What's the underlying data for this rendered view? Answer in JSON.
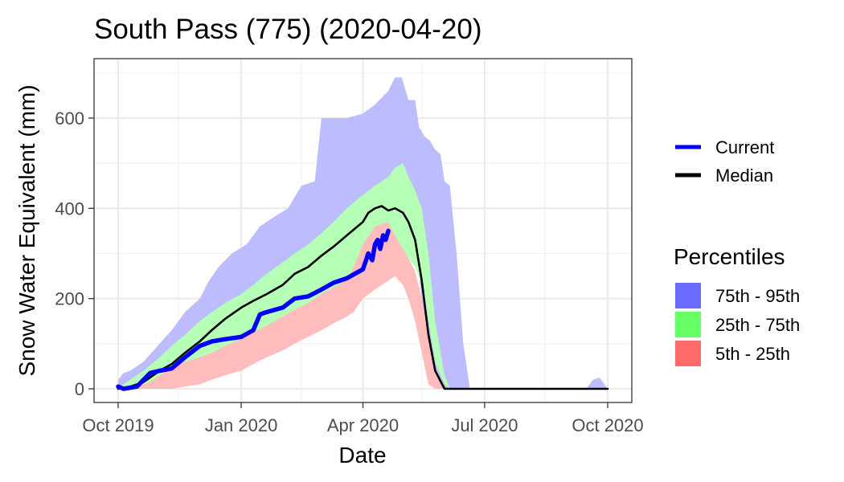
{
  "chart_data": {
    "type": "area",
    "title": "South Pass (775) (2020-04-20)",
    "xlabel": "Date",
    "ylabel": "Snow Water Equivalent (mm)",
    "xlim": [
      "2019-10-01",
      "2020-10-01"
    ],
    "ylim": [
      -30,
      720
    ],
    "grid": true,
    "x_ticks": [
      {
        "date": "2019-10-01",
        "label": "Oct 2019"
      },
      {
        "date": "2020-01-01",
        "label": "Jan 2020"
      },
      {
        "date": "2020-04-01",
        "label": "Apr 2020"
      },
      {
        "date": "2020-07-01",
        "label": "Jul 2020"
      },
      {
        "date": "2020-10-01",
        "label": "Oct 2020"
      }
    ],
    "x_minor_ticks": [
      "2019-11-15",
      "2020-02-15",
      "2020-05-15",
      "2020-08-15"
    ],
    "y_ticks": [
      0,
      200,
      400,
      600
    ],
    "y_minor_ticks": [
      100,
      300,
      500,
      700
    ],
    "legend": {
      "placement": "right",
      "lines_title": "",
      "lines": [
        {
          "name": "Current",
          "color": "#0000ff"
        },
        {
          "name": "Median",
          "color": "#000000"
        }
      ],
      "fill_title": "Percentiles",
      "fills": [
        {
          "name": "75th - 95th",
          "color": "#6b6bff"
        },
        {
          "name": "25th - 75th",
          "color": "#66ff66"
        },
        {
          "name": "5th - 25th",
          "color": "#ff6b6b"
        }
      ]
    },
    "series": [
      {
        "name": "75th - 95th",
        "kind": "band",
        "color": "#bcbcff",
        "x": [
          "2019-10-01",
          "2019-10-05",
          "2019-10-10",
          "2019-10-20",
          "2019-11-01",
          "2019-11-10",
          "2019-11-20",
          "2019-12-01",
          "2019-12-08",
          "2019-12-15",
          "2019-12-25",
          "2020-01-05",
          "2020-01-15",
          "2020-01-25",
          "2020-02-05",
          "2020-02-15",
          "2020-02-25",
          "2020-03-01",
          "2020-03-10",
          "2020-03-20",
          "2020-04-01",
          "2020-04-10",
          "2020-04-20",
          "2020-04-25",
          "2020-04-30",
          "2020-05-05",
          "2020-05-10",
          "2020-05-13",
          "2020-05-17",
          "2020-05-21",
          "2020-05-25",
          "2020-05-29",
          "2020-06-01",
          "2020-06-05",
          "2020-06-10",
          "2020-06-15",
          "2020-06-20",
          "2020-07-01",
          "2020-09-15",
          "2020-09-20",
          "2020-09-25",
          "2020-10-01"
        ],
        "upper": [
          20,
          35,
          40,
          60,
          100,
          130,
          170,
          200,
          240,
          270,
          300,
          320,
          360,
          380,
          400,
          450,
          460,
          600,
          600,
          600,
          610,
          630,
          660,
          690,
          690,
          640,
          640,
          580,
          560,
          550,
          530,
          520,
          460,
          450,
          300,
          100,
          0,
          0,
          0,
          20,
          25,
          0
        ],
        "lower": [
          0,
          5,
          10,
          20,
          40,
          55,
          70,
          90,
          95,
          100,
          110,
          125,
          145,
          165,
          190,
          210,
          230,
          250,
          270,
          300,
          340,
          370,
          390,
          400,
          395,
          360,
          320,
          250,
          150,
          60,
          20,
          0,
          0,
          0,
          0,
          0,
          0,
          0,
          0,
          0,
          0,
          0
        ]
      },
      {
        "name": "25th - 75th",
        "kind": "band",
        "color": "#b6ffb6",
        "x": [
          "2019-10-01",
          "2019-10-05",
          "2019-10-10",
          "2019-10-20",
          "2019-11-01",
          "2019-11-10",
          "2019-11-20",
          "2019-12-01",
          "2019-12-10",
          "2019-12-20",
          "2020-01-01",
          "2020-01-10",
          "2020-01-20",
          "2020-02-01",
          "2020-02-10",
          "2020-02-20",
          "2020-03-01",
          "2020-03-10",
          "2020-03-20",
          "2020-04-01",
          "2020-04-10",
          "2020-04-20",
          "2020-04-25",
          "2020-05-01",
          "2020-05-05",
          "2020-05-10",
          "2020-05-15",
          "2020-05-20",
          "2020-05-25",
          "2020-06-01",
          "2020-06-05",
          "2020-06-10",
          "2020-10-01"
        ],
        "upper": [
          5,
          10,
          20,
          40,
          70,
          95,
          120,
          150,
          170,
          190,
          210,
          230,
          255,
          280,
          300,
          320,
          345,
          370,
          400,
          430,
          450,
          470,
          490,
          500,
          470,
          440,
          400,
          300,
          150,
          30,
          0,
          0,
          0
        ],
        "lower": [
          0,
          0,
          5,
          10,
          20,
          30,
          45,
          55,
          65,
          75,
          85,
          95,
          110,
          130,
          150,
          170,
          190,
          210,
          230,
          260,
          280,
          300,
          310,
          300,
          290,
          270,
          230,
          150,
          60,
          10,
          0,
          0,
          0
        ]
      },
      {
        "name": "5th - 25th",
        "kind": "band",
        "color": "#ffbcbc",
        "x": [
          "2019-10-01",
          "2019-10-15",
          "2019-10-25",
          "2019-11-01",
          "2019-11-10",
          "2019-11-20",
          "2019-12-01",
          "2019-12-10",
          "2019-12-20",
          "2020-01-01",
          "2020-01-10",
          "2020-01-20",
          "2020-02-01",
          "2020-02-10",
          "2020-02-20",
          "2020-03-01",
          "2020-03-10",
          "2020-03-20",
          "2020-03-25",
          "2020-04-01",
          "2020-04-10",
          "2020-04-20",
          "2020-04-25",
          "2020-05-01",
          "2020-05-05",
          "2020-05-10",
          "2020-05-15",
          "2020-05-20",
          "2020-05-25",
          "2020-06-01",
          "2020-10-01"
        ],
        "upper": [
          0,
          5,
          15,
          30,
          45,
          60,
          70,
          80,
          95,
          110,
          125,
          140,
          160,
          175,
          190,
          210,
          225,
          240,
          270,
          320,
          360,
          370,
          340,
          310,
          290,
          260,
          200,
          120,
          40,
          0,
          0
        ],
        "lower": [
          0,
          0,
          0,
          0,
          0,
          5,
          10,
          20,
          30,
          40,
          55,
          70,
          85,
          100,
          115,
          130,
          145,
          160,
          170,
          200,
          220,
          240,
          250,
          230,
          200,
          150,
          80,
          10,
          0,
          0,
          0
        ]
      },
      {
        "name": "Median",
        "kind": "line",
        "color": "#000000",
        "x": [
          "2019-10-01",
          "2019-10-10",
          "2019-10-20",
          "2019-11-01",
          "2019-11-10",
          "2019-11-20",
          "2019-12-01",
          "2019-12-10",
          "2019-12-20",
          "2020-01-01",
          "2020-01-10",
          "2020-01-20",
          "2020-02-01",
          "2020-02-10",
          "2020-02-20",
          "2020-03-01",
          "2020-03-10",
          "2020-03-20",
          "2020-04-01",
          "2020-04-05",
          "2020-04-10",
          "2020-04-15",
          "2020-04-20",
          "2020-04-25",
          "2020-05-01",
          "2020-05-05",
          "2020-05-10",
          "2020-05-15",
          "2020-05-20",
          "2020-05-25",
          "2020-06-01",
          "2020-06-05",
          "2020-10-01"
        ],
        "y": [
          0,
          5,
          15,
          40,
          55,
          80,
          105,
          130,
          155,
          180,
          195,
          210,
          230,
          255,
          270,
          295,
          315,
          340,
          370,
          390,
          400,
          405,
          395,
          400,
          390,
          370,
          330,
          240,
          120,
          40,
          0,
          0,
          0
        ]
      },
      {
        "name": "Current",
        "kind": "line",
        "color": "#0000ff",
        "x": [
          "2019-10-01",
          "2019-10-05",
          "2019-10-15",
          "2019-10-25",
          "2019-11-01",
          "2019-11-10",
          "2019-11-20",
          "2019-12-01",
          "2019-12-10",
          "2019-12-20",
          "2020-01-01",
          "2020-01-10",
          "2020-01-15",
          "2020-01-20",
          "2020-02-01",
          "2020-02-10",
          "2020-02-20",
          "2020-03-01",
          "2020-03-10",
          "2020-03-20",
          "2020-04-01",
          "2020-04-05",
          "2020-04-08",
          "2020-04-10",
          "2020-04-12",
          "2020-04-14",
          "2020-04-16",
          "2020-04-18",
          "2020-04-20"
        ],
        "y": [
          5,
          0,
          5,
          35,
          40,
          45,
          70,
          95,
          105,
          110,
          115,
          130,
          165,
          170,
          180,
          200,
          205,
          220,
          235,
          245,
          265,
          300,
          285,
          320,
          330,
          310,
          340,
          330,
          350
        ]
      }
    ]
  }
}
